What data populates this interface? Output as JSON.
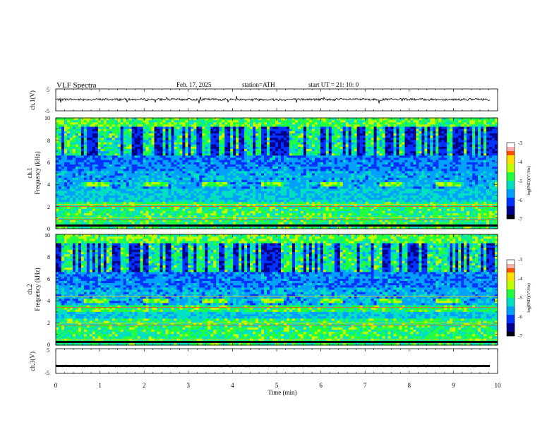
{
  "header": {
    "title": "VLF  Spectra",
    "date": "Feb. 17, 2025",
    "station": "station=ATH",
    "start_time": "start  UT  =   21: 10: 0"
  },
  "chart_data": [
    {
      "type": "line",
      "ylabel": "ch.1(V)",
      "ylim": [
        -5,
        5
      ],
      "yticks": [
        "5",
        "-5"
      ],
      "xlim": [
        0,
        10
      ],
      "series": [
        {
          "baseline": 0.2,
          "noise_amplitude": 0.5,
          "color": "#000000"
        }
      ]
    },
    {
      "type": "heatmap",
      "ylabel_line1": "ch.1",
      "ylabel_line2": "Frequency (kHz)",
      "ylim": [
        0,
        10
      ],
      "yticks": [
        "0",
        "2",
        "4",
        "6",
        "8",
        "10"
      ],
      "xlim": [
        0,
        10
      ],
      "colorbar": {
        "label": "log(PSD)(V²/Hz)",
        "ticks": [
          "-3",
          "-4",
          "-5",
          "-6",
          "-7"
        ],
        "range": [
          -7,
          -3
        ]
      },
      "repeating_band": {
        "freq_khz": [
          3.75,
          4.3
        ],
        "period_min": 1.33,
        "on_duration_min": 0.55,
        "first_start_min": 0.65
      },
      "line_features_khz": [
        2.2,
        2.0,
        1.0,
        0.8,
        0.3
      ]
    },
    {
      "type": "heatmap",
      "ylabel_line1": "ch.2",
      "ylabel_line2": "Frequency (kHz)",
      "ylim": [
        0,
        10
      ],
      "yticks": [
        "0",
        "2",
        "4",
        "6",
        "8",
        "10"
      ],
      "xlim": [
        0,
        10
      ],
      "colorbar": {
        "label": "log(PSD)(V²/Hz)",
        "ticks": [
          "-3",
          "-4",
          "-5",
          "-6",
          "-7"
        ],
        "range": [
          -7,
          -3
        ]
      },
      "repeating_band": {
        "freq_khz": [
          3.75,
          4.3
        ],
        "period_min": 1.33,
        "on_duration_min": 0.55,
        "first_start_min": 0.65
      },
      "line_features_khz": [
        4.4,
        3.4,
        2.0,
        1.8,
        0.5
      ]
    },
    {
      "type": "line",
      "ylabel": "ch.3(V)",
      "ylim": [
        -5,
        5
      ],
      "yticks": [
        "5",
        "-5"
      ],
      "xlim": [
        0,
        10
      ],
      "series": [
        {
          "baseline": -2.0,
          "noise_amplitude": 0.05,
          "color": "#000000"
        }
      ]
    }
  ],
  "xaxis": {
    "label": "Time  (min)",
    "ticks": [
      "0",
      "1",
      "2",
      "3",
      "4",
      "5",
      "6",
      "7",
      "8",
      "9",
      "10"
    ],
    "range": [
      0,
      10
    ]
  },
  "colormap": [
    "#ffffff",
    "#f5a0a0",
    "#e00000",
    "#ff8c00",
    "#ffff00",
    "#00e000",
    "#00c8ff",
    "#0060ff",
    "#0000a0",
    "#000000"
  ]
}
